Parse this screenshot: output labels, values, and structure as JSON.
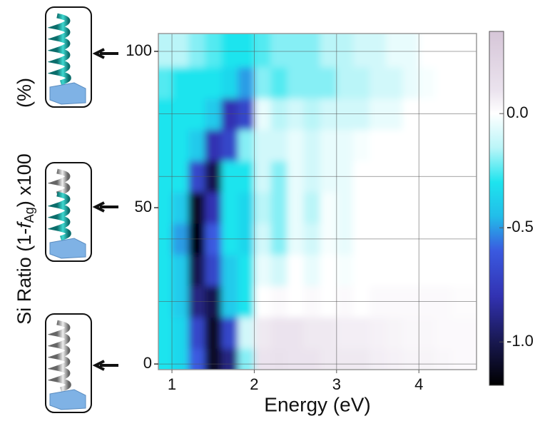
{
  "chart_data": {
    "type": "heatmap",
    "x_label": "Energy (eV)",
    "y_label": [
      "Si Ratio (1-",
      "f",
      "Ag",
      ") x100",
      "(%)"
    ],
    "xlim": [
      0.835,
      4.7
    ],
    "ylim": [
      -1.8,
      105.7
    ],
    "xticks": [
      1,
      2,
      3,
      4
    ],
    "yticks": [
      0,
      50,
      100
    ],
    "ygrid": [
      0,
      20,
      40,
      60,
      80,
      100
    ],
    "grid": true,
    "x": [
      0.9,
      1.1,
      1.3,
      1.5,
      1.7,
      1.9,
      2.1,
      2.3,
      2.5,
      2.7,
      2.9,
      3.1,
      3.3,
      3.5,
      3.7,
      3.9,
      4.1,
      4.3,
      4.5,
      4.7
    ],
    "y": [
      0,
      10,
      20,
      30,
      40,
      50,
      60,
      70,
      80,
      90,
      100
    ],
    "z": [
      [
        -0.3,
        -0.35,
        -0.6,
        -1.1,
        -0.9,
        -0.2,
        0.1,
        0.12,
        0.1,
        0.1,
        0.08,
        0.08,
        0.08,
        0.06,
        0.05,
        0.04,
        0.04,
        0.03,
        0.02,
        0.02
      ],
      [
        -0.3,
        -0.35,
        -0.7,
        -1.1,
        -0.7,
        -0.1,
        0.08,
        0.1,
        0.1,
        0.08,
        0.08,
        0.06,
        0.06,
        0.05,
        0.04,
        0.03,
        0.03,
        0.02,
        0.02,
        0.02
      ],
      [
        -0.3,
        -0.4,
        -0.9,
        -1.0,
        -0.4,
        -0.3,
        0.0,
        0.02,
        0.0,
        0.02,
        0.0,
        0.02,
        0.0,
        0.02,
        0.02,
        0.02,
        0.02,
        0.02,
        0.01,
        0.01
      ],
      [
        -0.3,
        -0.4,
        -1.0,
        -0.7,
        -0.4,
        -0.3,
        -0.05,
        -0.1,
        0.0,
        -0.05,
        0.0,
        -0.02,
        0.0,
        0.0,
        0.0,
        0.0,
        0.0,
        0.0,
        0.0,
        0.0
      ],
      [
        -0.3,
        -0.5,
        -1.15,
        -0.6,
        -0.3,
        -0.35,
        -0.1,
        -0.2,
        -0.05,
        -0.1,
        -0.02,
        -0.05,
        0.0,
        0.0,
        0.0,
        0.0,
        0.0,
        0.0,
        0.0,
        0.0
      ],
      [
        -0.3,
        -0.4,
        -1.1,
        -0.8,
        -0.3,
        -0.35,
        -0.15,
        -0.2,
        -0.05,
        -0.15,
        -0.02,
        -0.05,
        0.0,
        0.0,
        0.0,
        0.0,
        0.0,
        0.0,
        0.0,
        0.0
      ],
      [
        -0.3,
        -0.3,
        -0.7,
        -1.0,
        -0.3,
        -0.3,
        -0.1,
        -0.2,
        -0.05,
        -0.1,
        -0.05,
        -0.05,
        0.0,
        0.0,
        0.0,
        0.0,
        0.0,
        0.0,
        0.0,
        0.0
      ],
      [
        -0.3,
        -0.3,
        -0.4,
        -0.8,
        -0.7,
        -0.2,
        -0.1,
        -0.1,
        -0.05,
        -0.1,
        -0.05,
        -0.05,
        -0.02,
        0.0,
        0.0,
        0.0,
        0.0,
        0.0,
        0.0,
        0.0
      ],
      [
        -0.3,
        -0.3,
        -0.3,
        -0.4,
        -0.8,
        -0.7,
        -0.05,
        -0.15,
        -0.1,
        -0.15,
        -0.1,
        -0.1,
        -0.1,
        -0.05,
        -0.05,
        0.0,
        0.0,
        0.0,
        0.0,
        0.0
      ],
      [
        -0.25,
        -0.3,
        -0.3,
        -0.3,
        -0.35,
        -0.5,
        -0.2,
        -0.25,
        -0.2,
        -0.2,
        -0.2,
        -0.15,
        -0.15,
        -0.1,
        -0.1,
        -0.05,
        -0.02,
        0.0,
        0.0,
        0.0
      ],
      [
        -0.15,
        -0.15,
        -0.2,
        -0.25,
        -0.3,
        -0.3,
        -0.25,
        -0.2,
        -0.2,
        -0.2,
        -0.15,
        -0.15,
        -0.1,
        -0.1,
        -0.05,
        -0.05,
        0.0,
        0.0,
        0.0,
        0.0
      ]
    ],
    "clim": [
      -1.19,
      0.36
    ],
    "cticks": [
      {
        "value": 0,
        "label": "0.0"
      },
      -0.5,
      {
        "value": -1,
        "label": "-1.0"
      }
    ],
    "colormap": [
      {
        "value": 0.36,
        "color": "#d6c6d8"
      },
      {
        "value": 0.1,
        "color": "#ebe3ee"
      },
      {
        "value": 0,
        "color": "#ffffff"
      },
      {
        "value": -0.15,
        "color": "#baf5f8"
      },
      {
        "value": -0.3,
        "color": "#1ee4ee"
      },
      {
        "value": -0.45,
        "color": "#22bde9"
      },
      {
        "value": -0.6,
        "color": "#3a5ae0"
      },
      {
        "value": -0.8,
        "color": "#3232b2"
      },
      {
        "value": -1,
        "color": "#181850"
      },
      {
        "value": -1.19,
        "color": "#000000"
      }
    ]
  }
}
